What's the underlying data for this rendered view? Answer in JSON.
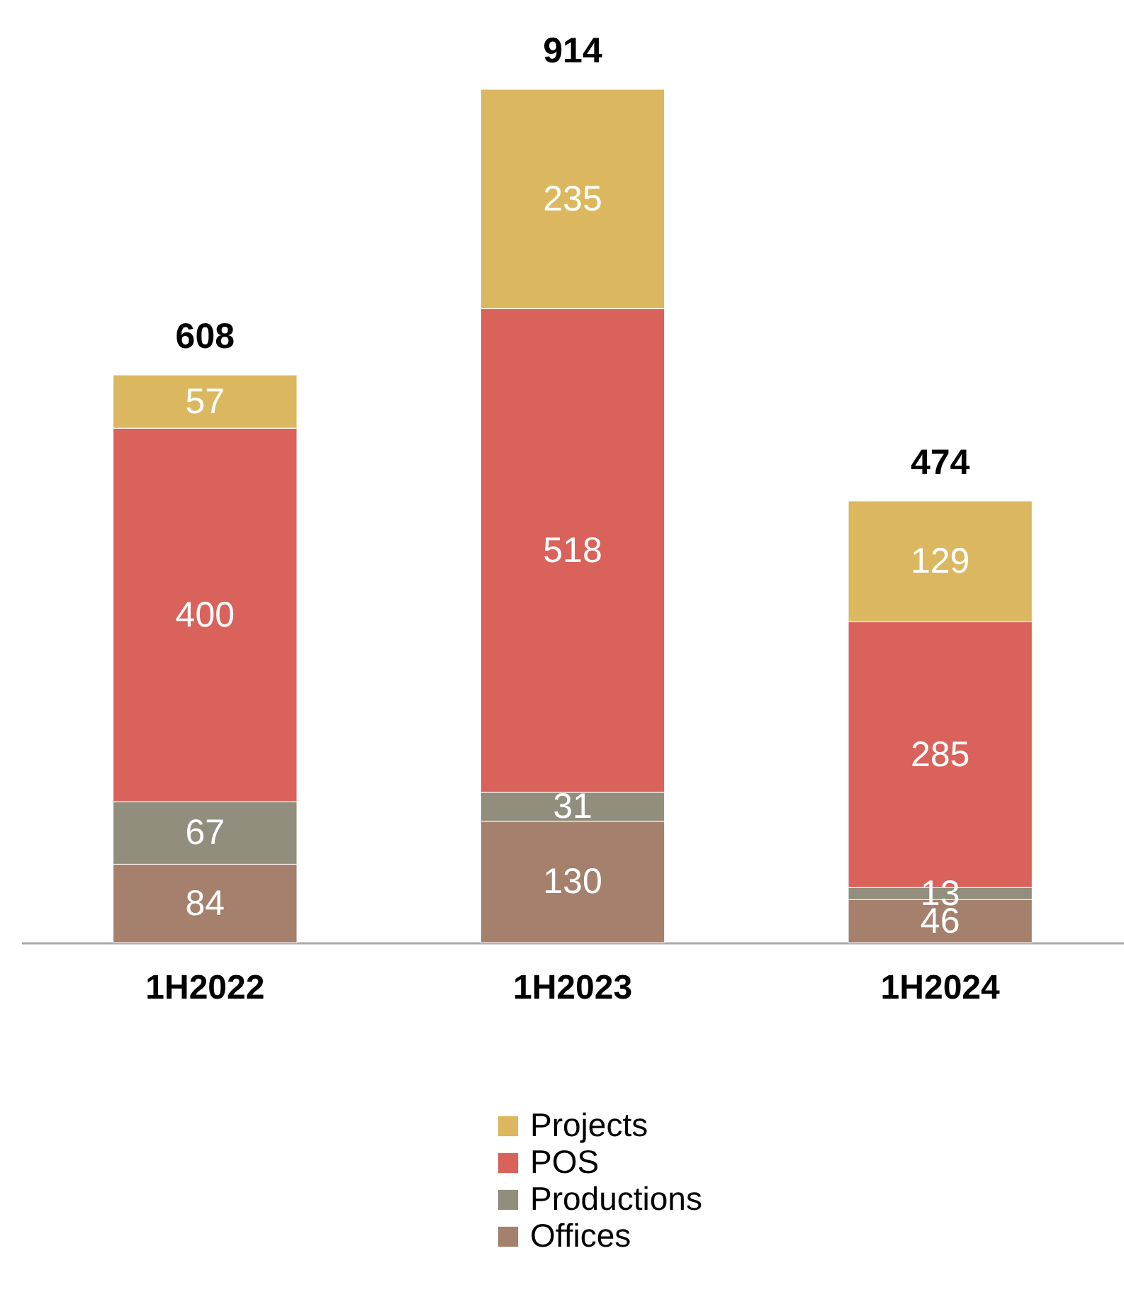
{
  "chart_data": {
    "type": "bar",
    "stacked": true,
    "categories": [
      "1H2022",
      "1H2023",
      "1H2024"
    ],
    "series": [
      {
        "name": "Offices",
        "color": "#a5806c",
        "values": [
          84,
          130,
          46
        ]
      },
      {
        "name": "Productions",
        "color": "#918e7e",
        "values": [
          67,
          31,
          13
        ]
      },
      {
        "name": "POS",
        "color": "#d9625b",
        "values": [
          400,
          518,
          285
        ]
      },
      {
        "name": "Projects",
        "color": "#dbb85f",
        "values": [
          57,
          235,
          129
        ]
      }
    ],
    "data_labels": true,
    "totals": [
      "608",
      "914",
      "474"
    ],
    "legend": "bottom",
    "grid": false
  }
}
